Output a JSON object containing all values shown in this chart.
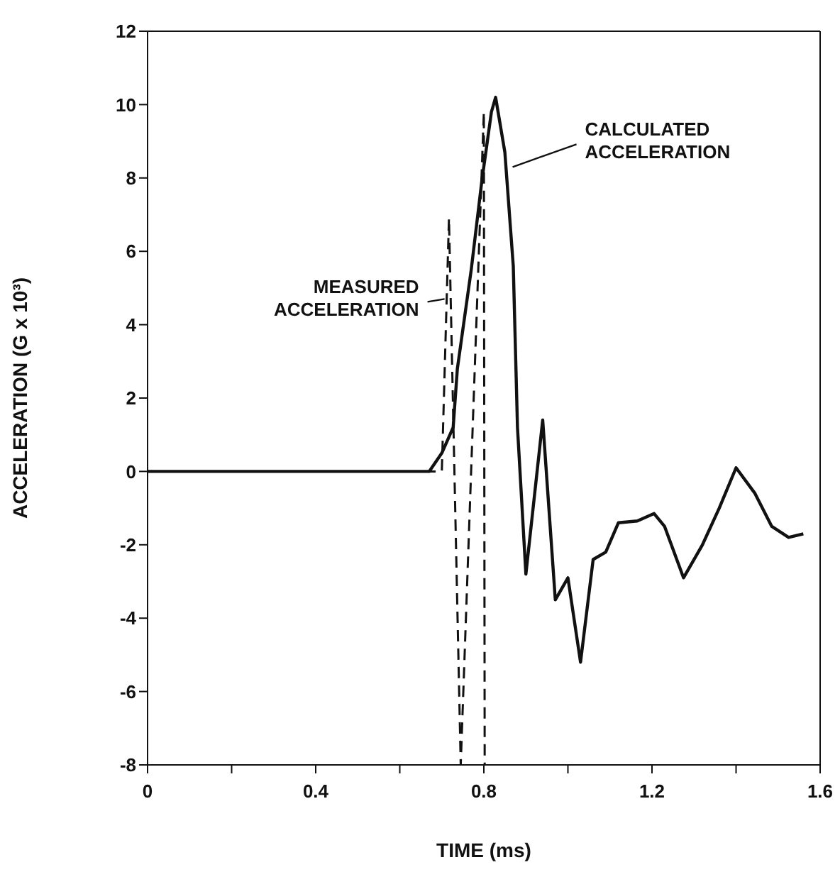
{
  "chart_data": {
    "type": "line",
    "xlabel": "TIME (ms)",
    "ylabel": "ACCELERATION (G x 10³)",
    "xlim": [
      0,
      1.6
    ],
    "ylim": [
      -8,
      12
    ],
    "xticks": [
      0,
      {
        "value": 0.2,
        "label": null
      },
      0.4,
      {
        "value": 0.6,
        "label": null
      },
      0.8,
      {
        "value": 1.0,
        "label": null
      },
      1.2,
      {
        "value": 1.4,
        "label": null
      },
      1.6
    ],
    "yticks": [
      -8,
      -6,
      -4,
      -2,
      0,
      2,
      4,
      6,
      8,
      10,
      12
    ],
    "marker": "none",
    "series": [
      {
        "color": "#111111",
        "line_style": "solid",
        "x": [
          0,
          0.3,
          0.6,
          0.67,
          0.7,
          0.727,
          0.737,
          0.77,
          0.795,
          0.818,
          0.828,
          0.85,
          0.87,
          0.88,
          0.9,
          0.94,
          0.97,
          1.0,
          1.03,
          1.06,
          1.09,
          1.12,
          1.165,
          1.205,
          1.23,
          1.275,
          1.32,
          1.36,
          1.4,
          1.445,
          1.485,
          1.525,
          1.56
        ],
        "values": [
          0,
          0,
          0,
          0,
          0.5,
          1.2,
          2.8,
          5.5,
          7.9,
          9.8,
          10.2,
          8.7,
          5.6,
          1.2,
          -2.8,
          1.4,
          -3.5,
          -2.9,
          -5.2,
          -2.4,
          -2.2,
          -1.4,
          -1.35,
          -1.15,
          -1.5,
          -2.9,
          -2.0,
          -1.0,
          0.1,
          -0.6,
          -1.5,
          -1.8,
          -1.7
        ]
      },
      {
        "color": "#111111",
        "line_style": "dashed",
        "x": [
          0,
          0.7,
          0.717,
          0.745,
          0.8,
          0.802
        ],
        "values": [
          0,
          0,
          6.9,
          -8,
          9.8,
          -8
        ]
      }
    ],
    "annotations": [
      {
        "text": "CALCULATED ACCELERATION",
        "x": 0.855,
        "y": 8.3
      },
      {
        "text": "MEASURED ACCELERATION",
        "x": 0.72,
        "y": 4.7
      }
    ]
  }
}
